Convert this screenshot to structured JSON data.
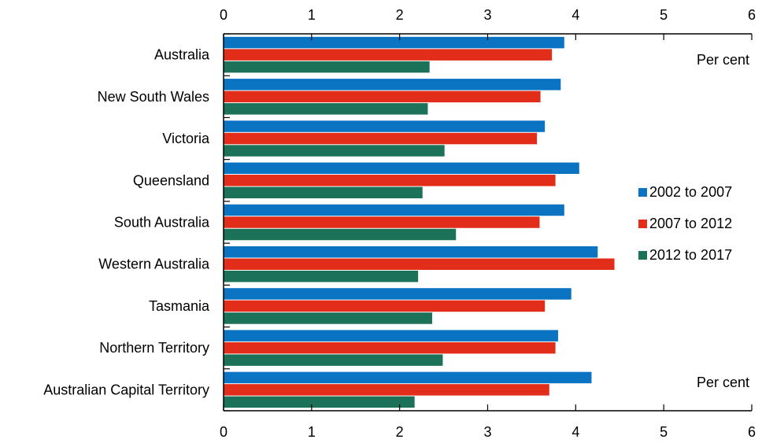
{
  "chart_data": {
    "type": "bar",
    "orientation": "horizontal",
    "categories": [
      "Australia",
      "New South Wales",
      "Victoria",
      "Queensland",
      "South Australia",
      "Western Australia",
      "Tasmania",
      "Northern Territory",
      "Australian Capital Territory"
    ],
    "series": [
      {
        "name": "2002 to 2007",
        "color": "#0a74c3",
        "values": [
          3.87,
          3.83,
          3.65,
          4.04,
          3.87,
          4.25,
          3.95,
          3.8,
          4.18
        ]
      },
      {
        "name": "2007 to 2012",
        "color": "#e22d1b",
        "values": [
          3.73,
          3.6,
          3.56,
          3.77,
          3.59,
          4.44,
          3.65,
          3.77,
          3.7
        ]
      },
      {
        "name": "2012 to 2017",
        "color": "#1c7258",
        "values": [
          2.34,
          2.32,
          2.51,
          2.26,
          2.64,
          2.21,
          2.37,
          2.49,
          2.17
        ]
      }
    ],
    "xlim": [
      0,
      6
    ],
    "xticks": [
      "0",
      "1",
      "2",
      "3",
      "4",
      "5",
      "6"
    ],
    "unit_label_top": "Per cent",
    "unit_label_bottom": "Per cent",
    "grid": false,
    "legend": "right"
  }
}
